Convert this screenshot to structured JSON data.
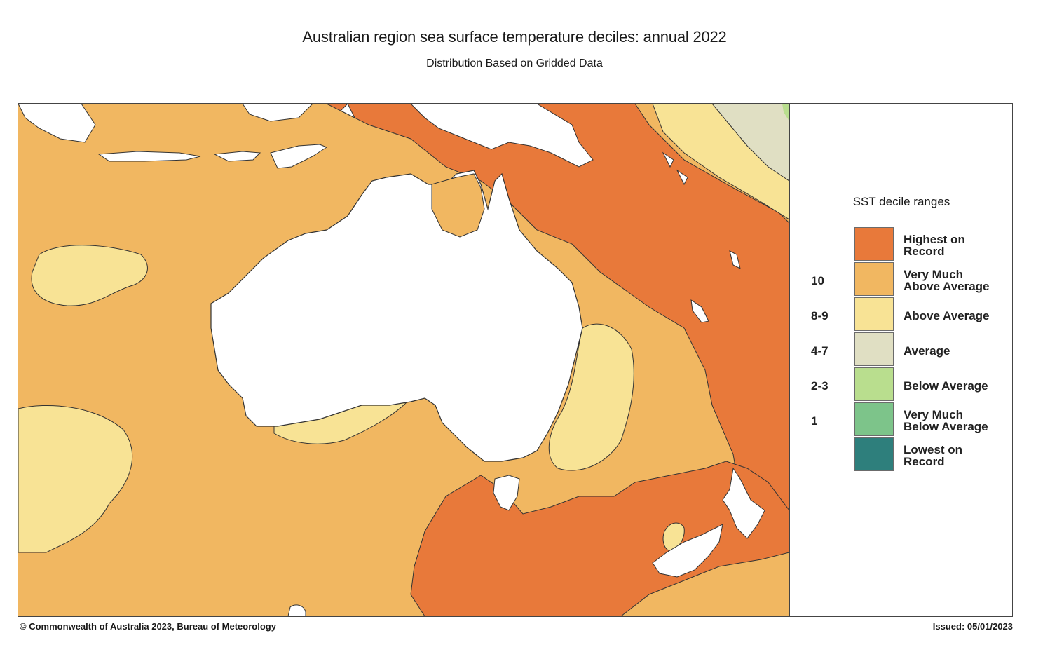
{
  "title": "Australian region sea surface temperature deciles:  annual 2022",
  "subtitle": "Distribution Based on Gridded Data",
  "legend": {
    "title": "SST decile ranges",
    "categories": [
      {
        "label_line1": "Highest on",
        "label_line2": "Record",
        "color": "#E8793A"
      },
      {
        "label_line1": "Very Much",
        "label_line2": "Above Average",
        "color": "#F1B761"
      },
      {
        "label_line1": "Above Average",
        "label_line2": "",
        "color": "#F8E395"
      },
      {
        "label_line1": "Average",
        "label_line2": "",
        "color": "#E0DFC3"
      },
      {
        "label_line1": "Below Average",
        "label_line2": "",
        "color": "#B9DE8E"
      },
      {
        "label_line1": "Very Much",
        "label_line2": "Below Average",
        "color": "#7DC48A"
      },
      {
        "label_line1": "Lowest on",
        "label_line2": "Record",
        "color": "#2E7F7C"
      }
    ],
    "decile_numbers": [
      "10",
      "8-9",
      "4-7",
      "2-3",
      "1"
    ]
  },
  "footer": {
    "copyright": "© Commonwealth of Australia 2023, Bureau of Meteorology",
    "issued": "Issued: 05/01/2023"
  }
}
